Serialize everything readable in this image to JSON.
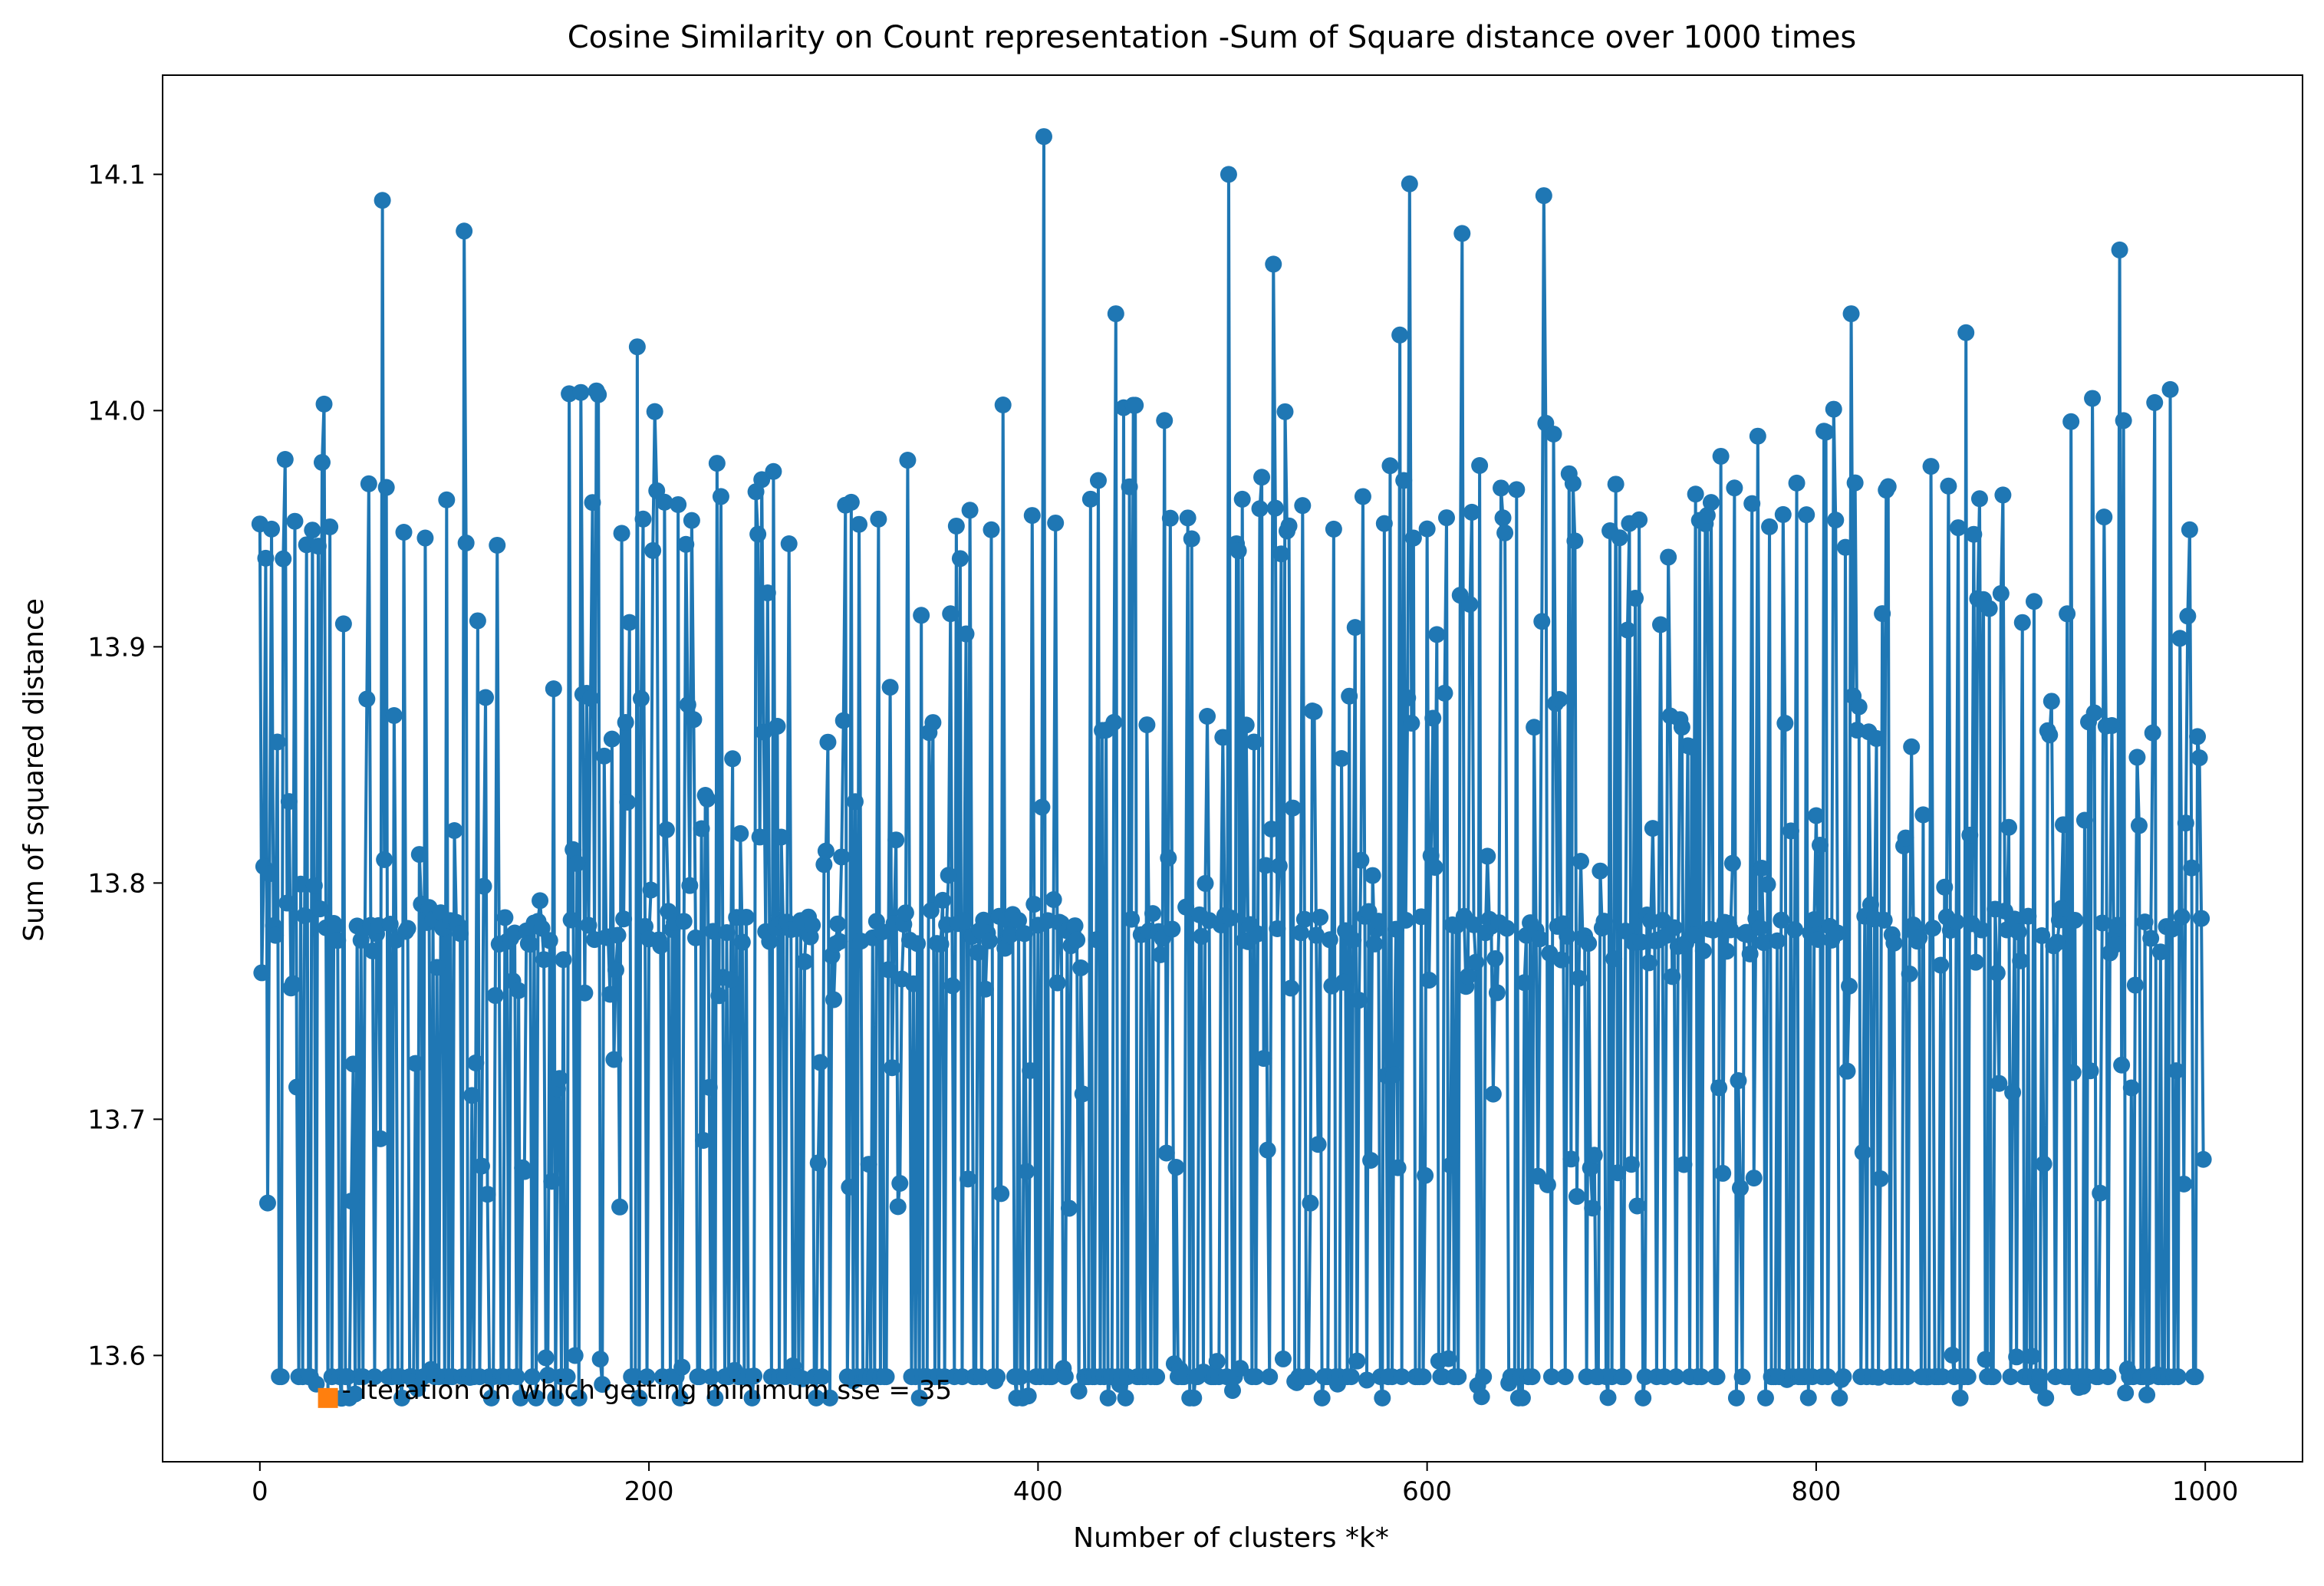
{
  "chart_data": {
    "type": "line",
    "title": "Cosine Similarity on Count representation -Sum of Square distance over 1000 times",
    "xlabel": "Number of clusters *k*",
    "ylabel": "Sum of squared distance",
    "xlim": [
      -50,
      1050
    ],
    "ylim": [
      13.555,
      14.142
    ],
    "xticks": [
      0,
      200,
      400,
      600,
      800,
      1000
    ],
    "xtick_labels": [
      "0",
      "200",
      "400",
      "600",
      "800",
      "1000"
    ],
    "yticks": [
      13.6,
      13.7,
      13.8,
      13.9,
      14.0,
      14.1
    ],
    "ytick_labels": [
      "13.6",
      "13.7",
      "13.8",
      "13.9",
      "14.0",
      "14.1"
    ],
    "grid": false,
    "legend": "none",
    "colors": {
      "series": "#1f77b4",
      "highlight": "#ff7f0e"
    },
    "series": [
      {
        "marker": "circle",
        "n_points": 1000,
        "x_start": 0,
        "x_end": 999,
        "levels": [
          13.582,
          13.591,
          13.671,
          13.682,
          13.72,
          13.758,
          13.762,
          13.779,
          13.783,
          13.807,
          13.828,
          13.862,
          13.873,
          13.913,
          13.945,
          13.952,
          13.962,
          13.971,
          13.999,
          14.008
        ],
        "peaks": [
          {
            "x": 63,
            "y": 14.089
          },
          {
            "x": 105,
            "y": 14.076
          },
          {
            "x": 194,
            "y": 14.027
          },
          {
            "x": 403,
            "y": 14.116
          },
          {
            "x": 498,
            "y": 14.1
          },
          {
            "x": 521,
            "y": 14.062
          },
          {
            "x": 591,
            "y": 14.096
          },
          {
            "x": 618,
            "y": 14.075
          },
          {
            "x": 660,
            "y": 14.091
          },
          {
            "x": 956,
            "y": 14.068
          },
          {
            "x": 440,
            "y": 14.041
          },
          {
            "x": 818,
            "y": 14.041
          },
          {
            "x": 586,
            "y": 14.032
          },
          {
            "x": 877,
            "y": 14.033
          }
        ],
        "last_values": [
          13.862,
          13.853,
          13.785,
          13.683
        ]
      },
      {
        "name": "Iteration on which getting minimum sse = 35",
        "marker": "square",
        "points": [
          {
            "x": 35,
            "y": 13.582
          }
        ]
      }
    ],
    "annotations": [
      "Iteration on which getting minimum sse = 35"
    ]
  }
}
